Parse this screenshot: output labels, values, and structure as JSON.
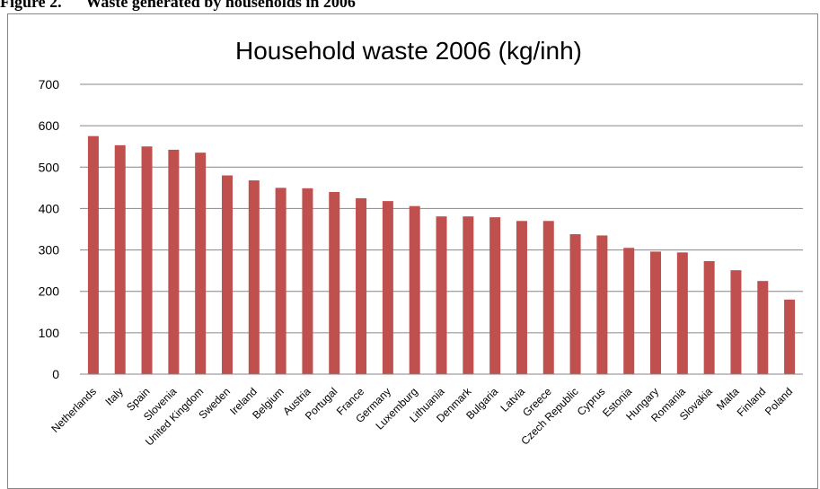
{
  "figure": {
    "caption": "Figure 2.      Waste generated by households in 2006"
  },
  "colors": {
    "bar": "#c0504d",
    "grid": "#868686",
    "axis": "#868686"
  },
  "chart_data": {
    "type": "bar",
    "title": "Household waste 2006 (kg/inh)",
    "xlabel": "",
    "ylabel": "",
    "ylim": [
      0,
      700
    ],
    "yticks": [
      0,
      100,
      200,
      300,
      400,
      500,
      600,
      700
    ],
    "grid": true,
    "legend": "none",
    "categories": [
      "Netherlands",
      "Italy",
      "Spain",
      "Slovenia",
      "United Kingdom",
      "Sweden",
      "Ireland",
      "Belgium",
      "Austria",
      "Portugal",
      "France",
      "Germany",
      "Luxemburg",
      "Lithuania",
      "Denmark",
      "Bulgaria",
      "Latvia",
      "Greece",
      "Czech Republic",
      "Cyprus",
      "Estonia",
      "Hungary",
      "Romania",
      "Slovakia",
      "Malta",
      "Finland",
      "Poland"
    ],
    "values": [
      575,
      553,
      550,
      542,
      535,
      480,
      468,
      450,
      449,
      440,
      425,
      418,
      406,
      381,
      381,
      379,
      370,
      370,
      338,
      335,
      305,
      296,
      294,
      273,
      251,
      225,
      180
    ]
  }
}
